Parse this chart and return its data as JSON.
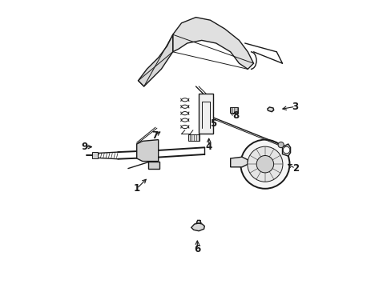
{
  "bg_color": "#ffffff",
  "line_color": "#1a1a1a",
  "fig_width": 4.89,
  "fig_height": 3.6,
  "dpi": 100,
  "label_positions": {
    "1": {
      "text": [
        0.295,
        0.345
      ],
      "arrow": [
        0.335,
        0.385
      ]
    },
    "2": {
      "text": [
        0.845,
        0.415
      ],
      "arrow": [
        0.81,
        0.435
      ]
    },
    "3": {
      "text": [
        0.845,
        0.63
      ],
      "arrow": [
        0.79,
        0.62
      ]
    },
    "4": {
      "text": [
        0.545,
        0.49
      ],
      "arrow": [
        0.545,
        0.53
      ]
    },
    "5": {
      "text": [
        0.56,
        0.57
      ],
      "arrow": [
        0.52,
        0.59
      ]
    },
    "6": {
      "text": [
        0.505,
        0.135
      ],
      "arrow": [
        0.505,
        0.175
      ]
    },
    "7": {
      "text": [
        0.358,
        0.53
      ],
      "arrow": [
        0.385,
        0.548
      ]
    },
    "8": {
      "text": [
        0.638,
        0.6
      ],
      "arrow": [
        0.61,
        0.617
      ]
    },
    "9": {
      "text": [
        0.115,
        0.49
      ],
      "arrow": [
        0.15,
        0.49
      ]
    }
  }
}
